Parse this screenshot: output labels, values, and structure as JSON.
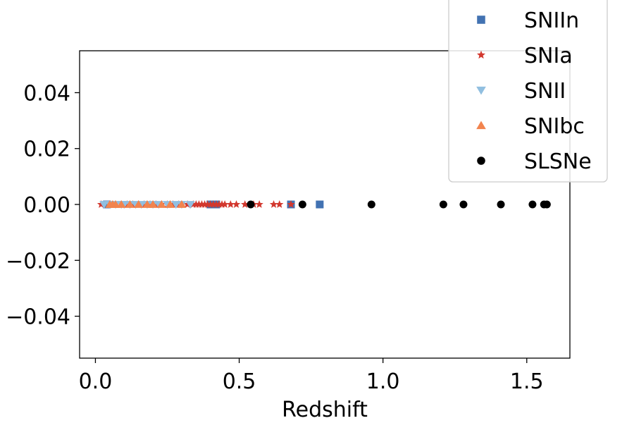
{
  "chart_data": {
    "type": "scatter",
    "title": "",
    "xlabel": "Redshift",
    "ylabel": "",
    "xlim": [
      -0.055,
      1.65
    ],
    "ylim": [
      -0.055,
      0.055
    ],
    "xticks": [
      0.0,
      0.5,
      1.0,
      1.5
    ],
    "xtick_labels": [
      "0.0",
      "0.5",
      "1.0",
      "1.5"
    ],
    "yticks": [
      0.04,
      0.02,
      0.0,
      -0.02,
      -0.04
    ],
    "ytick_labels": [
      "0.04",
      "0.02",
      "0.00",
      "−0.02",
      "−0.04"
    ],
    "grid": false,
    "legend_position": "top-right",
    "series": [
      {
        "name": "SNIIn",
        "marker": "square",
        "color": "#4272b2",
        "x": [
          0.04,
          0.4,
          0.42,
          0.68,
          0.78
        ],
        "y": [
          0,
          0,
          0,
          0,
          0
        ]
      },
      {
        "name": "SNIa",
        "marker": "star",
        "color": "#d2382e",
        "x": [
          0.02,
          0.05,
          0.07,
          0.09,
          0.11,
          0.13,
          0.15,
          0.17,
          0.19,
          0.21,
          0.23,
          0.25,
          0.27,
          0.29,
          0.3,
          0.32,
          0.34,
          0.35,
          0.36,
          0.37,
          0.38,
          0.39,
          0.4,
          0.41,
          0.42,
          0.43,
          0.44,
          0.45,
          0.47,
          0.49,
          0.52,
          0.55,
          0.57,
          0.62,
          0.64,
          0.68
        ],
        "y": [
          0,
          0,
          0,
          0,
          0,
          0,
          0,
          0,
          0,
          0,
          0,
          0,
          0,
          0,
          0,
          0,
          0,
          0,
          0,
          0,
          0,
          0,
          0,
          0,
          0,
          0,
          0,
          0,
          0,
          0,
          0,
          0,
          0,
          0,
          0,
          0
        ]
      },
      {
        "name": "SNII",
        "marker": "triangle-down",
        "color": "#91bfe0",
        "x": [
          0.03,
          0.05,
          0.07,
          0.09,
          0.1,
          0.12,
          0.14,
          0.16,
          0.18,
          0.2,
          0.22,
          0.25,
          0.28,
          0.3,
          0.33
        ],
        "y": [
          0,
          0,
          0,
          0,
          0,
          0,
          0,
          0,
          0,
          0,
          0,
          0,
          0,
          0,
          0
        ]
      },
      {
        "name": "SNIbc",
        "marker": "triangle-up",
        "color": "#f2844e",
        "x": [
          0.05,
          0.06,
          0.07,
          0.09,
          0.12,
          0.15,
          0.18,
          0.2,
          0.23,
          0.26,
          0.3
        ],
        "y": [
          0,
          0,
          0,
          0,
          0,
          0,
          0,
          0,
          0,
          0,
          0
        ]
      },
      {
        "name": "SLSNe",
        "marker": "circle",
        "color": "#000000",
        "x": [
          0.54,
          0.72,
          0.96,
          1.21,
          1.28,
          1.41,
          1.52,
          1.56,
          1.57
        ],
        "y": [
          0,
          0,
          0,
          0,
          0,
          0,
          0,
          0,
          0
        ]
      }
    ]
  }
}
